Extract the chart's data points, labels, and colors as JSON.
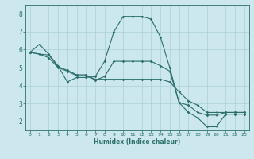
{
  "xlabel": "Humidex (Indice chaleur)",
  "background_color": "#cce8ee",
  "grid_color": "#aad0d8",
  "line_color": "#2a6e6a",
  "xlim": [
    -0.5,
    23.5
  ],
  "ylim": [
    1.5,
    8.5
  ],
  "xticks": [
    0,
    1,
    2,
    3,
    4,
    5,
    6,
    7,
    8,
    9,
    10,
    11,
    12,
    13,
    14,
    15,
    16,
    17,
    18,
    19,
    20,
    21,
    22,
    23
  ],
  "yticks": [
    2,
    3,
    4,
    5,
    6,
    7,
    8
  ],
  "line1_x": [
    0,
    1,
    2,
    3,
    4,
    5,
    6,
    7,
    8,
    9,
    10,
    11,
    12,
    13,
    14,
    15,
    16,
    17,
    18,
    19,
    20,
    21,
    22,
    23
  ],
  "line1_y": [
    5.85,
    6.3,
    5.75,
    5.1,
    4.2,
    4.45,
    4.45,
    4.5,
    5.35,
    7.0,
    7.85,
    7.85,
    7.85,
    7.7,
    6.7,
    5.0,
    3.05,
    2.5,
    2.2,
    1.7,
    1.7,
    2.4,
    2.4,
    2.4
  ],
  "line2_x": [
    0,
    1,
    2,
    3,
    4,
    5,
    6,
    7,
    8,
    9,
    10,
    11,
    12,
    13,
    14,
    15,
    16,
    17,
    18,
    19,
    20,
    21,
    22,
    23
  ],
  "line2_y": [
    5.85,
    5.75,
    5.7,
    5.05,
    4.85,
    4.6,
    4.6,
    4.3,
    4.5,
    5.35,
    5.35,
    5.35,
    5.35,
    5.35,
    5.1,
    4.8,
    3.05,
    2.9,
    2.5,
    2.35,
    2.35,
    2.5,
    2.5,
    2.5
  ],
  "line3_x": [
    0,
    1,
    2,
    3,
    4,
    5,
    6,
    7,
    8,
    9,
    10,
    11,
    12,
    13,
    14,
    15,
    16,
    17,
    18,
    19,
    20,
    21,
    22,
    23
  ],
  "line3_y": [
    5.85,
    5.75,
    5.55,
    5.0,
    4.8,
    4.55,
    4.55,
    4.35,
    4.35,
    4.35,
    4.35,
    4.35,
    4.35,
    4.35,
    4.35,
    4.2,
    3.65,
    3.15,
    2.9,
    2.5,
    2.5,
    2.5,
    2.5,
    2.5
  ]
}
